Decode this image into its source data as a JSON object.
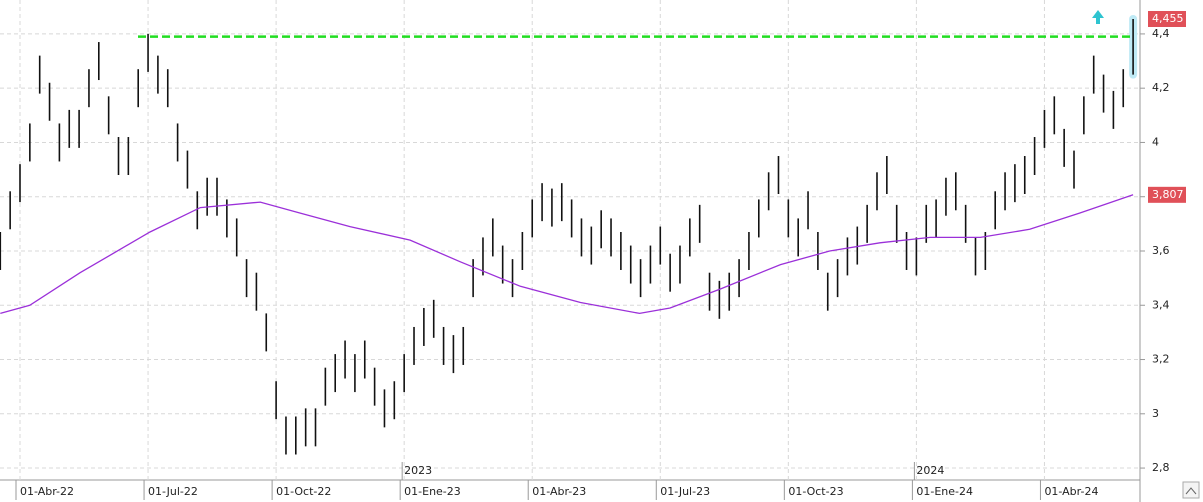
{
  "chart_data": {
    "type": "ohlc",
    "x": [
      -2,
      -1,
      0,
      1,
      2,
      3,
      4,
      5,
      6,
      7,
      8,
      9,
      10,
      11,
      12,
      13,
      14,
      15,
      16,
      17,
      18,
      19,
      20,
      21,
      22,
      23,
      24,
      25,
      26,
      27,
      28,
      29,
      30,
      31,
      32,
      33,
      34,
      35,
      36,
      37,
      38,
      39,
      40,
      41,
      42,
      43,
      44,
      45,
      46,
      47,
      48,
      49,
      50,
      51,
      52,
      53,
      54,
      55,
      56,
      57,
      58,
      59,
      60,
      61,
      62,
      63,
      64,
      65,
      66,
      67,
      68,
      69,
      70,
      71,
      72,
      73,
      74,
      75,
      76,
      77,
      78,
      79,
      80,
      81,
      82,
      83,
      84,
      85,
      86,
      87,
      88,
      89,
      90,
      91,
      92,
      93,
      94,
      95,
      96,
      97,
      98,
      99,
      100,
      101,
      102,
      103,
      104,
      105,
      106,
      107,
      108,
      109,
      110,
      111,
      112,
      113
    ],
    "high": [
      3.67,
      3.82,
      3.92,
      4.07,
      4.32,
      4.22,
      4.07,
      4.12,
      4.12,
      4.27,
      4.37,
      4.17,
      4.02,
      4.02,
      4.27,
      4.4,
      4.32,
      4.27,
      4.07,
      3.97,
      3.82,
      3.87,
      3.87,
      3.79,
      3.72,
      3.57,
      3.52,
      3.37,
      3.12,
      2.99,
      2.99,
      3.02,
      3.02,
      3.17,
      3.22,
      3.27,
      3.22,
      3.27,
      3.17,
      3.09,
      3.12,
      3.22,
      3.32,
      3.39,
      3.42,
      3.32,
      3.29,
      3.32,
      3.57,
      3.65,
      3.72,
      3.62,
      3.57,
      3.67,
      3.79,
      3.85,
      3.83,
      3.85,
      3.79,
      3.72,
      3.69,
      3.75,
      3.72,
      3.67,
      3.62,
      3.57,
      3.62,
      3.69,
      3.59,
      3.62,
      3.72,
      3.77,
      3.52,
      3.49,
      3.52,
      3.57,
      3.67,
      3.79,
      3.89,
      3.95,
      3.79,
      3.72,
      3.82,
      3.67,
      3.52,
      3.57,
      3.65,
      3.69,
      3.77,
      3.89,
      3.95,
      3.77,
      3.67,
      3.65,
      3.77,
      3.79,
      3.87,
      3.89,
      3.77,
      3.65,
      3.67,
      3.82,
      3.89,
      3.92,
      3.95,
      4.02,
      4.12,
      4.17,
      4.05,
      3.97,
      4.17,
      4.32,
      4.25,
      4.19,
      4.27,
      4.455
    ],
    "low": [
      3.53,
      3.68,
      3.78,
      3.93,
      4.18,
      4.08,
      3.93,
      3.98,
      3.98,
      4.13,
      4.23,
      4.03,
      3.88,
      3.88,
      4.13,
      4.26,
      4.18,
      4.13,
      3.93,
      3.83,
      3.68,
      3.73,
      3.73,
      3.65,
      3.58,
      3.43,
      3.38,
      3.23,
      2.98,
      2.85,
      2.85,
      2.88,
      2.88,
      3.03,
      3.08,
      3.13,
      3.08,
      3.13,
      3.03,
      2.95,
      2.98,
      3.08,
      3.18,
      3.25,
      3.28,
      3.18,
      3.15,
      3.18,
      3.43,
      3.51,
      3.58,
      3.48,
      3.43,
      3.53,
      3.65,
      3.71,
      3.69,
      3.71,
      3.65,
      3.58,
      3.55,
      3.61,
      3.58,
      3.53,
      3.48,
      3.43,
      3.48,
      3.55,
      3.45,
      3.48,
      3.58,
      3.63,
      3.38,
      3.35,
      3.38,
      3.43,
      3.53,
      3.65,
      3.75,
      3.81,
      3.65,
      3.58,
      3.68,
      3.53,
      3.38,
      3.43,
      3.51,
      3.55,
      3.63,
      3.75,
      3.81,
      3.63,
      3.53,
      3.51,
      3.63,
      3.65,
      3.73,
      3.75,
      3.63,
      3.51,
      3.53,
      3.68,
      3.75,
      3.78,
      3.81,
      3.88,
      3.98,
      4.03,
      3.91,
      3.83,
      4.03,
      4.18,
      4.11,
      4.05,
      4.13,
      4.25
    ],
    "bar_color": "#111111",
    "moving_average": {
      "color": "#9b30d9",
      "x": [
        -2,
        1,
        6.1,
        13.2,
        18.3,
        24.4,
        28.4,
        33.5,
        39.6,
        44.7,
        50.8,
        56.9,
        62.9,
        66,
        71.1,
        77.2,
        82.2,
        87.3,
        92.4,
        97.5,
        102.5,
        107.6,
        113
      ],
      "values": [
        3.37,
        3.4,
        3.52,
        3.67,
        3.76,
        3.78,
        3.74,
        3.69,
        3.64,
        3.56,
        3.47,
        3.41,
        3.37,
        3.39,
        3.46,
        3.55,
        3.6,
        3.63,
        3.65,
        3.65,
        3.68,
        3.74,
        3.807
      ]
    },
    "resistance": 4.39,
    "resistance_color": "#22dd22",
    "last_price": {
      "value": 4.455,
      "label": "4,455"
    },
    "ma_last": {
      "value": 3.807,
      "label": "3,807"
    },
    "label_color": "#e05058",
    "xlim": [
      -2.03,
      113.7
    ],
    "ylim": [
      2.756,
      4.525
    ],
    "xticks": [
      {
        "value": 0,
        "label": "01-Abr-22"
      },
      {
        "value": 13,
        "label": "01-Jul-22"
      },
      {
        "value": 26,
        "label": "01-Oct-22"
      },
      {
        "value": 39,
        "label": "01-Ene-23"
      },
      {
        "value": 52,
        "label": "01-Abr-23"
      },
      {
        "value": 65,
        "label": "01-Jul-23"
      },
      {
        "value": 78,
        "label": "01-Oct-23"
      },
      {
        "value": 91,
        "label": "01-Ene-24"
      },
      {
        "value": 104,
        "label": "01-Abr-24"
      }
    ],
    "year_labels": [
      {
        "value": 39,
        "label": "2023"
      },
      {
        "value": 91,
        "label": "2024"
      }
    ],
    "yticks": [
      {
        "value": 2.8,
        "label": "2,8"
      },
      {
        "value": 3,
        "label": "3"
      },
      {
        "value": 3.2,
        "label": "3,2"
      },
      {
        "value": 3.4,
        "label": "3,4"
      },
      {
        "value": 3.6,
        "label": "3,6"
      },
      {
        "value": 3.8,
        "label": "3,8"
      },
      {
        "value": 4,
        "label": "4"
      },
      {
        "value": 4.2,
        "label": "4,2"
      },
      {
        "value": 4.4,
        "label": "4,4"
      }
    ],
    "grid": true
  }
}
